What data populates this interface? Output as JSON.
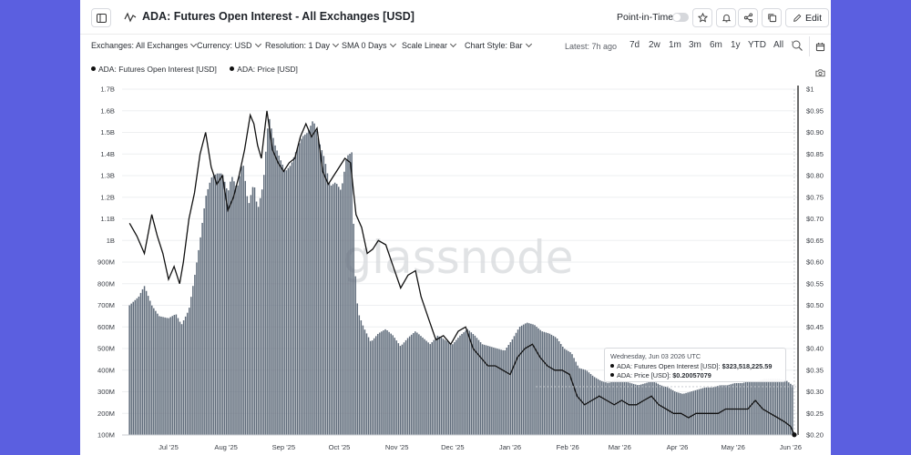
{
  "header": {
    "title": "ADA: Futures Open Interest - All Exchanges [USD]",
    "pit_label": "Point-in-Time",
    "edit_label": "Edit"
  },
  "filters": {
    "exchanges": "Exchanges: All Exchanges",
    "currency": "Currency: USD",
    "resolution": "Resolution: 1 Day",
    "sma": "SMA 0 Days",
    "scale": "Scale Linear",
    "chart_style": "Chart Style: Bar",
    "latest": "Latest: 7h ago"
  },
  "ranges": [
    "7d",
    "2w",
    "1m",
    "3m",
    "6m",
    "1y",
    "YTD",
    "All"
  ],
  "legend": {
    "series1": "ADA: Futures Open Interest [USD]",
    "series2": "ADA: Price [USD]"
  },
  "watermark": "glassnode",
  "tooltip": {
    "date": "Wednesday, Jun 03 2026 UTC",
    "oi_label": "ADA: Futures Open Interest [USD]:",
    "oi_value": "$323,518,225.59",
    "price_label": "ADA: Price [USD]:",
    "price_value": "$0.20057079"
  },
  "colors": {
    "bars": "#5f6b7a",
    "price_line": "#111111",
    "background_frame": "#5b5fe0"
  },
  "icons": [
    "sidebar-icon",
    "chart-line-icon",
    "star-icon",
    "bell-icon",
    "share-icon",
    "copy-icon",
    "pencil-icon",
    "zoom-icon",
    "calendar-icon",
    "camera-icon"
  ],
  "chart_data": {
    "type": "bar",
    "title": "ADA: Futures Open Interest - All Exchanges [USD]",
    "x_ticks": [
      "Jul '25",
      "Aug '25",
      "Sep '25",
      "Oct '25",
      "Nov '25",
      "Dec '25",
      "Jan '26",
      "Feb '26",
      "Mar '26",
      "Apr '26",
      "May '26",
      "Jun '26"
    ],
    "y_left_ticks": [
      "100M",
      "200M",
      "300M",
      "400M",
      "500M",
      "600M",
      "700M",
      "800M",
      "900M",
      "1B",
      "1.1B",
      "1.2B",
      "1.3B",
      "1.4B",
      "1.5B",
      "1.6B",
      "1.7B"
    ],
    "y_right_ticks": [
      "$0.20",
      "$0.25",
      "$0.30",
      "$0.35",
      "$0.40",
      "$0.45",
      "$0.50",
      "$0.55",
      "$0.60",
      "$0.65",
      "$0.70",
      "$0.75",
      "$0.80",
      "$0.85",
      "$0.90",
      "$0.95",
      "$1"
    ],
    "ylim_left": [
      100000000,
      1700000000
    ],
    "ylim_right": [
      0.2,
      1.0
    ],
    "grid": true,
    "legend": "top-left",
    "series": [
      {
        "name": "ADA: Futures Open Interest [USD]",
        "axis": "left",
        "style": "bar",
        "points": [
          [
            "2025-06-10",
            700000000
          ],
          [
            "2025-06-15",
            740000000
          ],
          [
            "2025-06-18",
            790000000
          ],
          [
            "2025-06-22",
            700000000
          ],
          [
            "2025-06-26",
            650000000
          ],
          [
            "2025-07-01",
            640000000
          ],
          [
            "2025-07-05",
            660000000
          ],
          [
            "2025-07-08",
            610000000
          ],
          [
            "2025-07-12",
            680000000
          ],
          [
            "2025-07-15",
            830000000
          ],
          [
            "2025-07-18",
            1000000000
          ],
          [
            "2025-07-21",
            1200000000
          ],
          [
            "2025-07-24",
            1290000000
          ],
          [
            "2025-07-27",
            1310000000
          ],
          [
            "2025-07-30",
            1310000000
          ],
          [
            "2025-08-02",
            1220000000
          ],
          [
            "2025-08-04",
            1300000000
          ],
          [
            "2025-08-07",
            1240000000
          ],
          [
            "2025-08-10",
            1370000000
          ],
          [
            "2025-08-13",
            1160000000
          ],
          [
            "2025-08-16",
            1270000000
          ],
          [
            "2025-08-18",
            1140000000
          ],
          [
            "2025-08-21",
            1260000000
          ],
          [
            "2025-08-24",
            1580000000
          ],
          [
            "2025-08-27",
            1450000000
          ],
          [
            "2025-08-30",
            1380000000
          ],
          [
            "2025-09-02",
            1320000000
          ],
          [
            "2025-09-05",
            1350000000
          ],
          [
            "2025-09-08",
            1420000000
          ],
          [
            "2025-09-11",
            1480000000
          ],
          [
            "2025-09-14",
            1500000000
          ],
          [
            "2025-09-17",
            1560000000
          ],
          [
            "2025-09-20",
            1460000000
          ],
          [
            "2025-09-23",
            1380000000
          ],
          [
            "2025-09-26",
            1250000000
          ],
          [
            "2025-09-29",
            1270000000
          ],
          [
            "2025-10-02",
            1230000000
          ],
          [
            "2025-10-05",
            1390000000
          ],
          [
            "2025-10-08",
            1410000000
          ],
          [
            "2025-10-09",
            920000000
          ],
          [
            "2025-10-11",
            670000000
          ],
          [
            "2025-10-14",
            600000000
          ],
          [
            "2025-10-18",
            530000000
          ],
          [
            "2025-10-22",
            570000000
          ],
          [
            "2025-10-26",
            590000000
          ],
          [
            "2025-10-30",
            560000000
          ],
          [
            "2025-11-03",
            510000000
          ],
          [
            "2025-11-07",
            550000000
          ],
          [
            "2025-11-11",
            580000000
          ],
          [
            "2025-11-15",
            550000000
          ],
          [
            "2025-11-19",
            520000000
          ],
          [
            "2025-11-23",
            560000000
          ],
          [
            "2025-11-27",
            540000000
          ],
          [
            "2025-12-01",
            520000000
          ],
          [
            "2025-12-05",
            560000000
          ],
          [
            "2025-12-09",
            590000000
          ],
          [
            "2025-12-13",
            560000000
          ],
          [
            "2025-12-17",
            520000000
          ],
          [
            "2025-12-21",
            510000000
          ],
          [
            "2025-12-25",
            500000000
          ],
          [
            "2025-12-29",
            490000000
          ],
          [
            "2026-01-02",
            540000000
          ],
          [
            "2026-01-06",
            600000000
          ],
          [
            "2026-01-10",
            620000000
          ],
          [
            "2026-01-14",
            610000000
          ],
          [
            "2026-01-18",
            580000000
          ],
          [
            "2026-01-22",
            570000000
          ],
          [
            "2026-01-26",
            550000000
          ],
          [
            "2026-01-30",
            500000000
          ],
          [
            "2026-02-03",
            480000000
          ],
          [
            "2026-02-07",
            410000000
          ],
          [
            "2026-02-11",
            400000000
          ],
          [
            "2026-02-15",
            370000000
          ],
          [
            "2026-02-19",
            350000000
          ],
          [
            "2026-02-23",
            340000000
          ],
          [
            "2026-02-27",
            360000000
          ],
          [
            "2026-03-03",
            350000000
          ],
          [
            "2026-03-07",
            340000000
          ],
          [
            "2026-03-11",
            330000000
          ],
          [
            "2026-03-15",
            340000000
          ],
          [
            "2026-03-19",
            350000000
          ],
          [
            "2026-03-23",
            330000000
          ],
          [
            "2026-03-27",
            320000000
          ],
          [
            "2026-03-31",
            300000000
          ],
          [
            "2026-04-04",
            290000000
          ],
          [
            "2026-04-08",
            300000000
          ],
          [
            "2026-04-12",
            310000000
          ],
          [
            "2026-04-16",
            320000000
          ],
          [
            "2026-04-20",
            320000000
          ],
          [
            "2026-04-24",
            330000000
          ],
          [
            "2026-04-28",
            330000000
          ],
          [
            "2026-05-02",
            340000000
          ],
          [
            "2026-05-06",
            340000000
          ],
          [
            "2026-05-10",
            350000000
          ],
          [
            "2026-05-14",
            350000000
          ],
          [
            "2026-05-18",
            360000000
          ],
          [
            "2026-05-22",
            360000000
          ],
          [
            "2026-05-26",
            360000000
          ],
          [
            "2026-05-30",
            350000000
          ],
          [
            "2026-06-03",
            323518225.59
          ]
        ]
      },
      {
        "name": "ADA: Price [USD]",
        "axis": "right",
        "style": "line",
        "points": [
          [
            "2025-06-10",
            0.69
          ],
          [
            "2025-06-14",
            0.66
          ],
          [
            "2025-06-18",
            0.62
          ],
          [
            "2025-06-22",
            0.71
          ],
          [
            "2025-06-25",
            0.66
          ],
          [
            "2025-06-28",
            0.62
          ],
          [
            "2025-07-01",
            0.56
          ],
          [
            "2025-07-04",
            0.59
          ],
          [
            "2025-07-07",
            0.55
          ],
          [
            "2025-07-09",
            0.6
          ],
          [
            "2025-07-12",
            0.7
          ],
          [
            "2025-07-15",
            0.76
          ],
          [
            "2025-07-18",
            0.85
          ],
          [
            "2025-07-21",
            0.9
          ],
          [
            "2025-07-24",
            0.82
          ],
          [
            "2025-07-27",
            0.78
          ],
          [
            "2025-07-30",
            0.8
          ],
          [
            "2025-08-02",
            0.72
          ],
          [
            "2025-08-05",
            0.75
          ],
          [
            "2025-08-08",
            0.8
          ],
          [
            "2025-08-11",
            0.86
          ],
          [
            "2025-08-14",
            0.94
          ],
          [
            "2025-08-16",
            0.92
          ],
          [
            "2025-08-18",
            0.87
          ],
          [
            "2025-08-20",
            0.84
          ],
          [
            "2025-08-23",
            0.95
          ],
          [
            "2025-08-26",
            0.86
          ],
          [
            "2025-08-29",
            0.83
          ],
          [
            "2025-09-01",
            0.81
          ],
          [
            "2025-09-04",
            0.83
          ],
          [
            "2025-09-07",
            0.84
          ],
          [
            "2025-09-10",
            0.89
          ],
          [
            "2025-09-13",
            0.92
          ],
          [
            "2025-09-16",
            0.89
          ],
          [
            "2025-09-19",
            0.91
          ],
          [
            "2025-09-22",
            0.81
          ],
          [
            "2025-09-25",
            0.78
          ],
          [
            "2025-09-28",
            0.8
          ],
          [
            "2025-10-01",
            0.82
          ],
          [
            "2025-10-04",
            0.84
          ],
          [
            "2025-10-07",
            0.83
          ],
          [
            "2025-10-10",
            0.71
          ],
          [
            "2025-10-13",
            0.68
          ],
          [
            "2025-10-16",
            0.62
          ],
          [
            "2025-10-19",
            0.63
          ],
          [
            "2025-10-22",
            0.65
          ],
          [
            "2025-10-26",
            0.64
          ],
          [
            "2025-10-30",
            0.59
          ],
          [
            "2025-11-03",
            0.54
          ],
          [
            "2025-11-07",
            0.57
          ],
          [
            "2025-11-11",
            0.58
          ],
          [
            "2025-11-14",
            0.52
          ],
          [
            "2025-11-18",
            0.47
          ],
          [
            "2025-11-22",
            0.42
          ],
          [
            "2025-11-26",
            0.43
          ],
          [
            "2025-11-30",
            0.41
          ],
          [
            "2025-12-04",
            0.44
          ],
          [
            "2025-12-08",
            0.45
          ],
          [
            "2025-12-12",
            0.4
          ],
          [
            "2025-12-16",
            0.38
          ],
          [
            "2025-12-20",
            0.36
          ],
          [
            "2025-12-24",
            0.36
          ],
          [
            "2025-12-28",
            0.35
          ],
          [
            "2026-01-01",
            0.34
          ],
          [
            "2026-01-05",
            0.38
          ],
          [
            "2026-01-09",
            0.4
          ],
          [
            "2026-01-13",
            0.41
          ],
          [
            "2026-01-17",
            0.38
          ],
          [
            "2026-01-21",
            0.36
          ],
          [
            "2026-01-25",
            0.35
          ],
          [
            "2026-01-29",
            0.35
          ],
          [
            "2026-02-02",
            0.34
          ],
          [
            "2026-02-06",
            0.29
          ],
          [
            "2026-02-10",
            0.27
          ],
          [
            "2026-02-14",
            0.28
          ],
          [
            "2026-02-18",
            0.29
          ],
          [
            "2026-02-22",
            0.28
          ],
          [
            "2026-02-26",
            0.27
          ],
          [
            "2026-03-02",
            0.28
          ],
          [
            "2026-03-06",
            0.27
          ],
          [
            "2026-03-10",
            0.27
          ],
          [
            "2026-03-14",
            0.28
          ],
          [
            "2026-03-18",
            0.29
          ],
          [
            "2026-03-22",
            0.27
          ],
          [
            "2026-03-26",
            0.26
          ],
          [
            "2026-03-30",
            0.25
          ],
          [
            "2026-04-03",
            0.25
          ],
          [
            "2026-04-07",
            0.24
          ],
          [
            "2026-04-11",
            0.25
          ],
          [
            "2026-04-15",
            0.25
          ],
          [
            "2026-04-19",
            0.25
          ],
          [
            "2026-04-23",
            0.25
          ],
          [
            "2026-04-27",
            0.26
          ],
          [
            "2026-05-01",
            0.26
          ],
          [
            "2026-05-05",
            0.26
          ],
          [
            "2026-05-09",
            0.26
          ],
          [
            "2026-05-13",
            0.28
          ],
          [
            "2026-05-17",
            0.26
          ],
          [
            "2026-05-21",
            0.25
          ],
          [
            "2026-05-25",
            0.24
          ],
          [
            "2026-05-29",
            0.23
          ],
          [
            "2026-06-01",
            0.22
          ],
          [
            "2026-06-03",
            0.20057079
          ]
        ]
      }
    ]
  }
}
